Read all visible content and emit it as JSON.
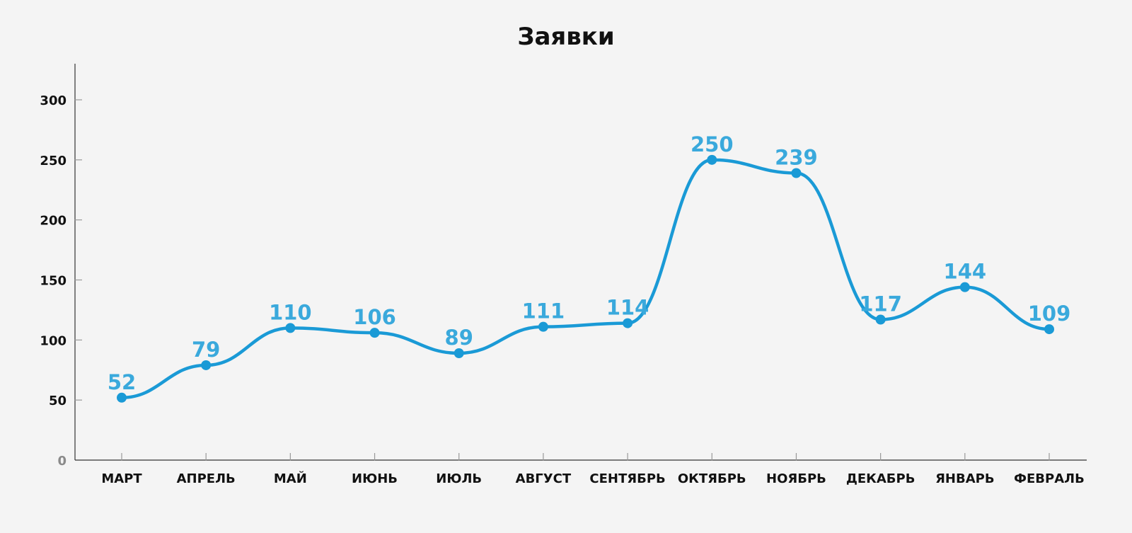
{
  "chart_data": {
    "type": "line",
    "title": "Заявки",
    "xlabel": "",
    "ylabel": "",
    "categories": [
      "МАРТ",
      "АПРЕЛЬ",
      "МАЙ",
      "ИЮНЬ",
      "ИЮЛЬ",
      "АВГУСТ",
      "СЕНТЯБРЬ",
      "ОКТЯБРЬ",
      "НОЯБРЬ",
      "ДЕКАБРЬ",
      "ЯНВАРЬ",
      "ФЕВРАЛЬ"
    ],
    "series": [
      {
        "values": [
          52,
          79,
          110,
          106,
          89,
          111,
          114,
          250,
          239,
          117,
          144,
          109
        ],
        "color": "#1a9ad6"
      }
    ],
    "data_labels": [
      "52",
      "79",
      "110",
      "106",
      "89",
      "111",
      "114",
      "250",
      "239",
      "117",
      "144",
      "109"
    ],
    "ylim": [
      0,
      330
    ],
    "y_ticks": [
      0,
      50,
      100,
      150,
      200,
      250,
      300
    ],
    "y_tick_labels": [
      "0",
      "50",
      "100",
      "150",
      "200",
      "250",
      "300"
    ],
    "grid": false,
    "legend": "none",
    "colors": {
      "line": "#1a9ad6",
      "label": "#3aa9dc",
      "axis": "#333333",
      "background": "#f4f4f4"
    }
  }
}
